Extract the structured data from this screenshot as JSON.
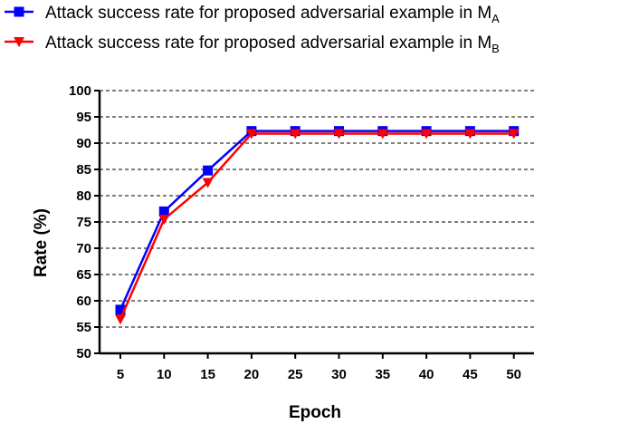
{
  "chart_data": {
    "type": "line",
    "xlabel": "Epoch",
    "ylabel": "Rate (%)",
    "x": [
      5,
      10,
      15,
      20,
      25,
      30,
      35,
      40,
      45,
      50
    ],
    "xticks": [
      "5",
      "10",
      "15",
      "20",
      "25",
      "30",
      "35",
      "40",
      "45",
      "50"
    ],
    "ylim": [
      50,
      100
    ],
    "yticks": [
      "50",
      "55",
      "60",
      "65",
      "70",
      "75",
      "80",
      "85",
      "90",
      "95",
      "100"
    ],
    "grid": "horizontal dashed",
    "legend_position": "top-left",
    "series": [
      {
        "name": "Attack success rate for proposed adversarial example in M",
        "name_subscript": "A",
        "color": "#0000ff",
        "marker": "square",
        "values": [
          58.3,
          77,
          84.8,
          92.3,
          92.3,
          92.3,
          92.3,
          92.3,
          92.3,
          92.3
        ]
      },
      {
        "name": "Attack success rate for proposed adversarial example in M",
        "name_subscript": "B",
        "color": "#ff0000",
        "marker": "triangle-down",
        "values": [
          56.5,
          75.5,
          82.5,
          91.8,
          91.8,
          91.8,
          91.8,
          91.8,
          91.8,
          91.8
        ]
      }
    ]
  }
}
